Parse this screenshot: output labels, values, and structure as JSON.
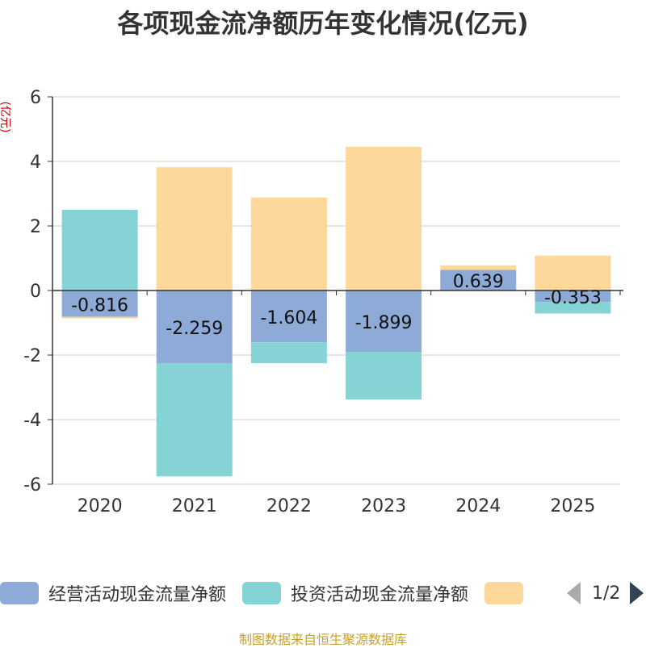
{
  "chart_data": {
    "type": "bar",
    "stacked": true,
    "title": "各项现金流净额历年变化情况(亿元)",
    "ylabel": "(亿元)",
    "ylim": [
      -6,
      6
    ],
    "yticks": [
      6,
      4,
      2,
      0,
      -2,
      -4,
      -6
    ],
    "grid": true,
    "legend_position": "bottom",
    "categories": [
      "2020",
      "2021",
      "2022",
      "2023",
      "2024",
      "2025"
    ],
    "series": [
      {
        "name": "经营活动现金流量净额",
        "color": "#8eabd8",
        "values": [
          -0.816,
          -2.259,
          -1.604,
          -1.899,
          0.639,
          -0.353
        ],
        "labels": [
          "-0.816",
          "-2.259",
          "-1.604",
          "-1.899",
          "0.639",
          "-0.353"
        ]
      },
      {
        "name": "投资活动现金流量净额",
        "color": "#86d3d6",
        "values": [
          2.5,
          -3.5,
          -0.65,
          -1.48,
          0,
          -0.36
        ]
      },
      {
        "color": "#fdd89a",
        "values": [
          -0.05,
          3.82,
          2.88,
          4.45,
          0.14,
          1.08
        ]
      }
    ]
  },
  "pager": {
    "text": "1/2"
  },
  "source": "制图数据来自恒生聚源数据库"
}
